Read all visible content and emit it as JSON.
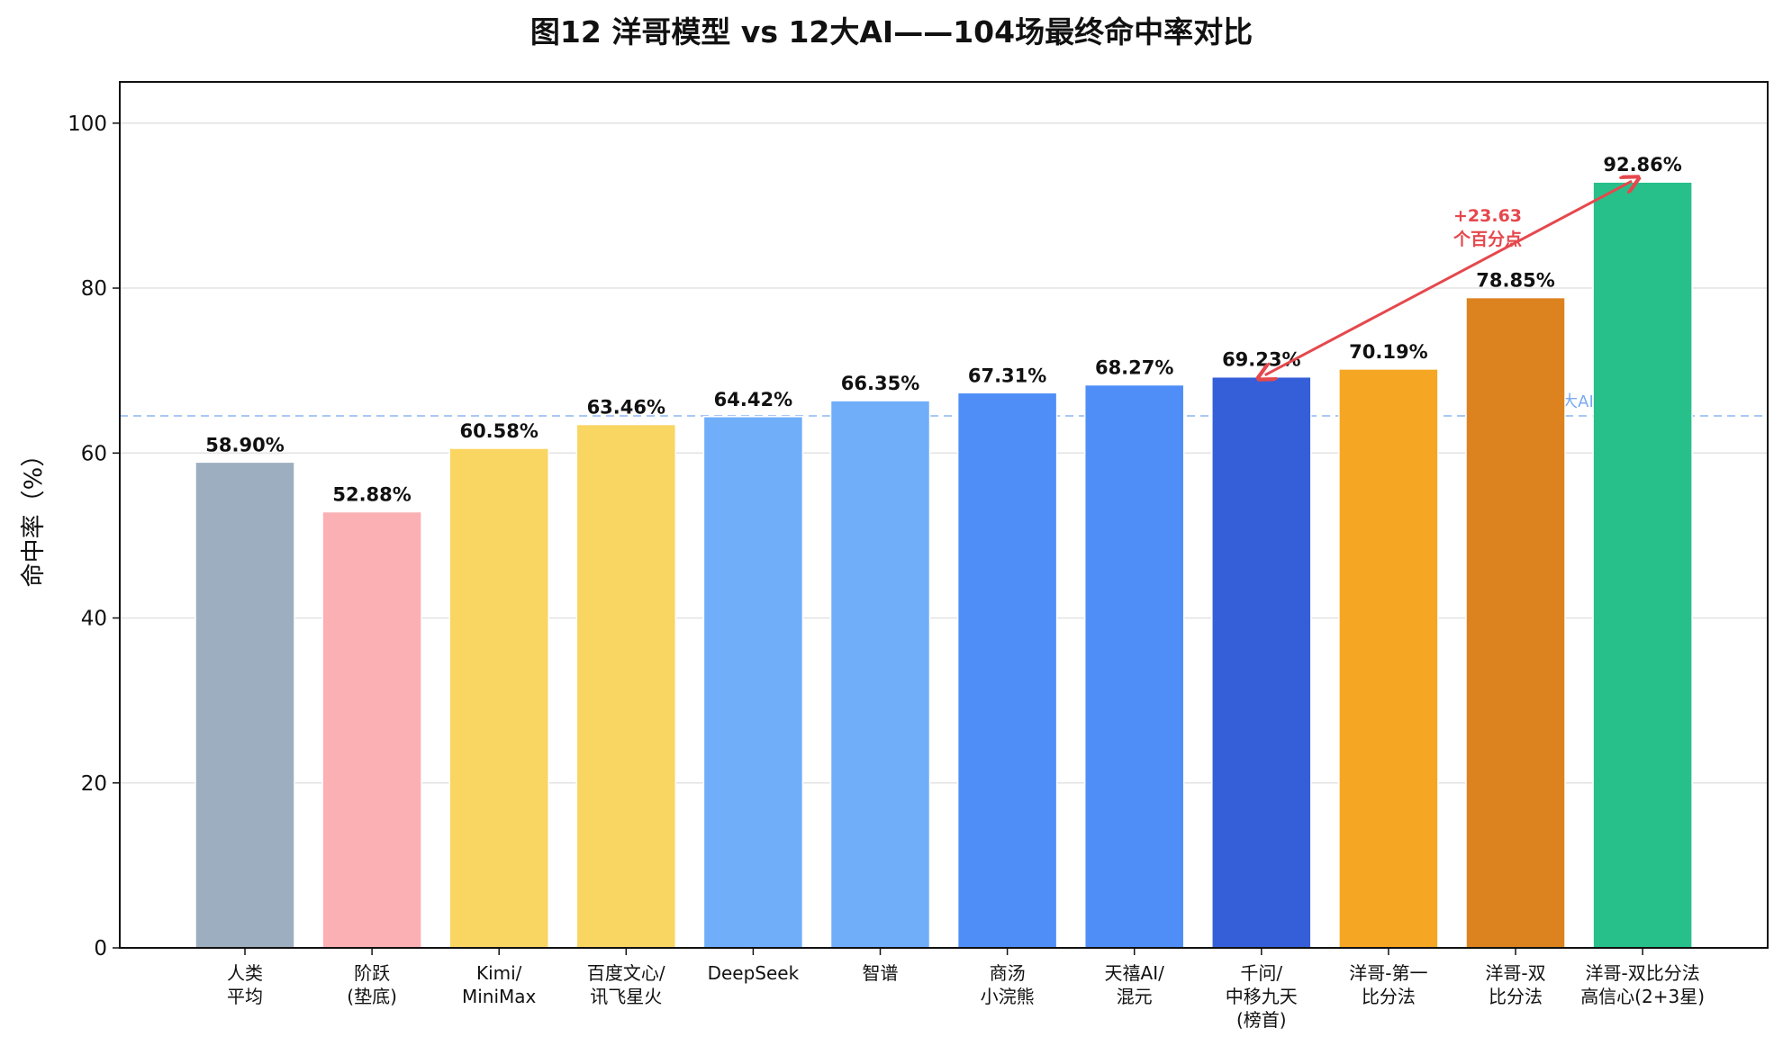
{
  "chart_data": {
    "type": "bar",
    "title": "图12  洋哥模型 vs 12大AI——104场最终命中率对比",
    "xlabel": "",
    "ylabel": "命中率（%）",
    "ylim": [
      0,
      105
    ],
    "yticks": [
      0,
      20,
      40,
      60,
      80,
      100
    ],
    "grid": true,
    "categories": [
      [
        "人类",
        "平均"
      ],
      [
        "阶跃",
        "(垫底)"
      ],
      [
        "Kimi/",
        "MiniMax"
      ],
      [
        "百度文心/",
        "讯飞星火"
      ],
      [
        "DeepSeek"
      ],
      [
        "智谱"
      ],
      [
        "商汤",
        "小浣熊"
      ],
      [
        "天禧AI/",
        "混元"
      ],
      [
        "千问/",
        "中移九天",
        "(榜首)"
      ],
      [
        "洋哥-第一",
        "比分法"
      ],
      [
        "洋哥-双",
        "比分法"
      ],
      [
        "洋哥-双比分法",
        "高信心(2+3星)"
      ]
    ],
    "values": [
      58.9,
      52.88,
      60.58,
      63.46,
      64.42,
      66.35,
      67.31,
      68.27,
      69.23,
      70.19,
      78.85,
      92.86
    ],
    "value_labels": [
      "58.90%",
      "52.88%",
      "60.58%",
      "63.46%",
      "64.42%",
      "66.35%",
      "67.31%",
      "68.27%",
      "69.23%",
      "70.19%",
      "78.85%",
      "92.86%"
    ],
    "colors": [
      "#9daec1",
      "#fbb0b3",
      "#f9d561",
      "#f9d561",
      "#70aef9",
      "#70aef9",
      "#4e8ef6",
      "#4e8ef6",
      "#355fd9",
      "#f5a623",
      "#dc8320",
      "#27c08a"
    ],
    "reference_line": {
      "value": 64.5,
      "label": "12大AI均值64.5%",
      "color": "#a9c8f5"
    },
    "annotation": {
      "lines": [
        "+23.63",
        "个百分点"
      ],
      "from_index": 8,
      "to_index": 11,
      "color": "#e5484d"
    }
  }
}
